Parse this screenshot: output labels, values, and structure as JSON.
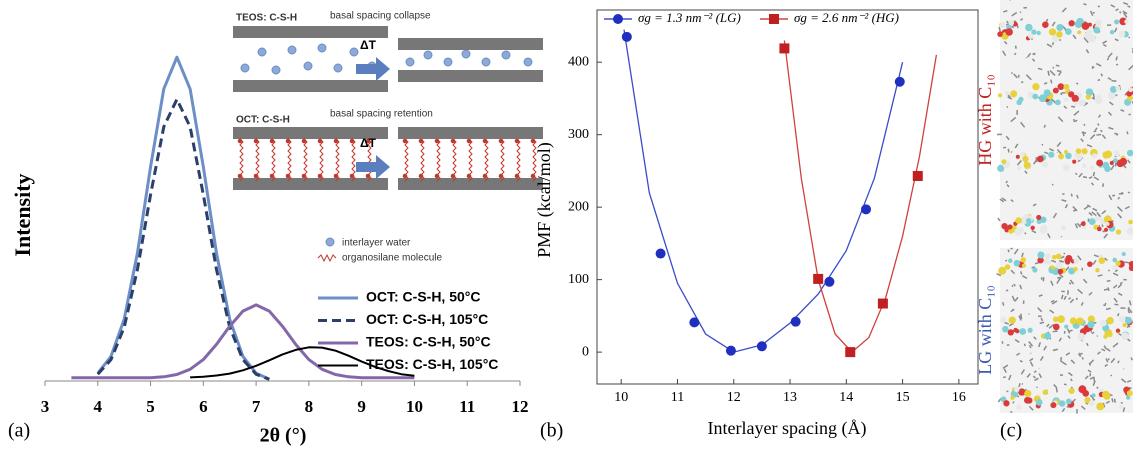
{
  "chart_data": [
    {
      "type": "line",
      "panel_label": "(a)",
      "x_label": "2θ (°)",
      "y_label": "Intensity",
      "xlim": [
        3,
        12
      ],
      "xticks": [
        3,
        4,
        5,
        6,
        7,
        8,
        9,
        10,
        11,
        12
      ],
      "ylim": [
        0,
        105
      ],
      "x": [
        3.5,
        3.75,
        4,
        4.25,
        4.5,
        4.75,
        5,
        5.25,
        5.5,
        5.75,
        6,
        6.25,
        6.5,
        6.75,
        7,
        7.25,
        7.5,
        7.75,
        8,
        8.25,
        8.5,
        8.75,
        9,
        9.25,
        9.5,
        9.75,
        10
      ],
      "series": [
        {
          "name": "OCT: C-S-H, 50°C",
          "color": "#6b8fc6",
          "values": [
            null,
            null,
            2.4,
            7.6,
            19.1,
            39.5,
            66.2,
            90.2,
            100,
            90.2,
            66.2,
            39.5,
            19.1,
            7.6,
            2.4,
            0.6,
            null,
            null,
            null,
            null,
            null,
            null,
            null,
            null,
            null,
            null,
            null
          ]
        },
        {
          "name": "OCT: C-S-H, 105°C",
          "color": "#2b3f6b",
          "dashed": true,
          "values": [
            null,
            null,
            2.1,
            6.6,
            16.6,
            34.4,
            57.6,
            78.5,
            87,
            78.5,
            57.6,
            34.4,
            16.6,
            6.6,
            2.1,
            0.5,
            null,
            null,
            null,
            null,
            null,
            null,
            null,
            null,
            null,
            null,
            null
          ]
        },
        {
          "name": "TEOS: C-S-H, 50°C",
          "color": "#8467a8",
          "values": [
            1,
            1,
            1,
            1,
            1,
            1,
            1,
            1.3,
            2,
            3.6,
            6.6,
            11.3,
            16.9,
            21.6,
            23.5,
            21.6,
            16.9,
            11.3,
            6.6,
            3.6,
            2,
            1.3,
            1,
            1,
            1,
            1,
            1
          ]
        },
        {
          "name": "TEOS: C-S-H, 105°C",
          "color": "#000000",
          "values": [
            null,
            null,
            null,
            null,
            null,
            null,
            null,
            null,
            null,
            1.1,
            1.3,
            1.7,
            2.3,
            3.3,
            4.7,
            6.4,
            8.2,
            9.6,
            10.4,
            10.3,
            9.4,
            7.8,
            6,
            4.4,
            3.1,
            2.1,
            1.6
          ]
        }
      ],
      "annotations": [
        "TEOS: C-S-H",
        "basal spacing collapse",
        "ΔT",
        "OCT: C-S-H",
        "basal spacing retention",
        "ΔT",
        "interlayer water",
        "organosilane molecule"
      ]
    },
    {
      "type": "scatter",
      "panel_label": "(b)",
      "x_label": "Interlayer spacing (Å)",
      "y_label": "PMF (kcal/mol)",
      "xlim": [
        9.57,
        16.34
      ],
      "xticks": [
        10,
        11,
        12,
        13,
        14,
        15,
        16
      ],
      "ylim": [
        -44,
        472
      ],
      "yticks": [
        0,
        100,
        200,
        300,
        400
      ],
      "series": [
        {
          "name": "σg = 1.3 nm⁻² (LG)",
          "color": "#1f2fc0",
          "marker": "circle",
          "x": [
            10.1,
            10.7,
            11.3,
            11.95,
            12.5,
            13.1,
            13.7,
            14.35,
            14.95
          ],
          "values": [
            435,
            136,
            41,
            2,
            8,
            42,
            97,
            197,
            373
          ]
        },
        {
          "name": "σg = 2.6 nm⁻² (HG)",
          "color": "#c0201f",
          "marker": "square",
          "x": [
            12.9,
            13.5,
            14.07,
            14.65,
            15.27
          ],
          "values": [
            419,
            101,
            0,
            67,
            243
          ]
        },
        {
          "color": "#3a4cc8",
          "x": [
            10.05,
            10.5,
            11,
            11.5,
            12,
            12.5,
            13,
            13.5,
            14,
            14.5,
            15
          ],
          "values": [
            445,
            220,
            95,
            25,
            0,
            10,
            40,
            80,
            140,
            240,
            400
          ]
        },
        {
          "color": "#d0403e",
          "x": [
            12.9,
            13.2,
            13.5,
            13.8,
            14.1,
            14.4,
            14.7,
            15,
            15.3,
            15.6
          ],
          "values": [
            430,
            240,
            100,
            25,
            0,
            20,
            75,
            160,
            270,
            410
          ]
        }
      ]
    }
  ],
  "image_panel": {
    "panel_label": "(c)",
    "captions": [
      "HG with C₁₀",
      "LG with C₁₀"
    ]
  }
}
